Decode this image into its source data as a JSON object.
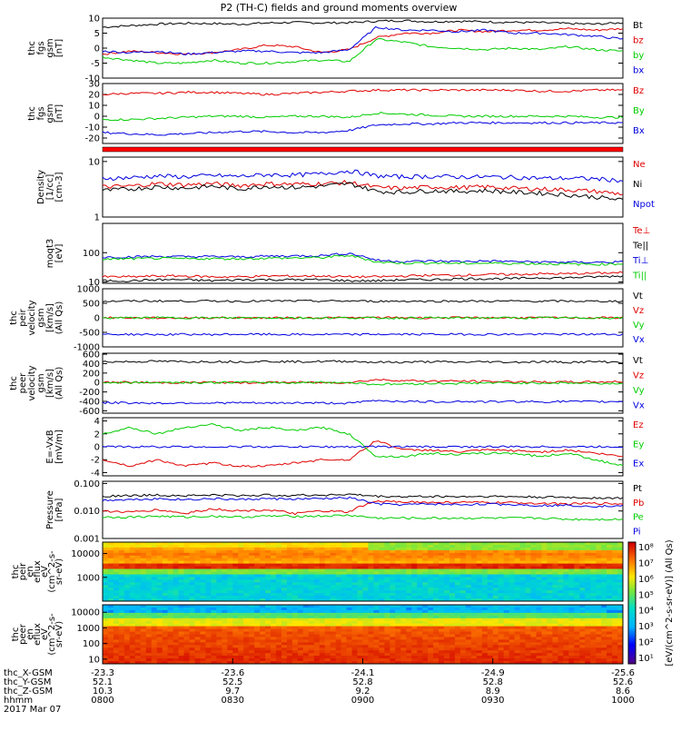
{
  "title": "P2 (TH-C) fields and ground moments overview",
  "colors": {
    "black": "#000000",
    "red": "#e00000",
    "green": "#00cc00",
    "blue": "#0000e0"
  },
  "chart_data": [
    {
      "id": "p1",
      "type": "line",
      "ylabel": [
        "thc",
        "fgs",
        "gsm",
        "[nT]"
      ],
      "ylim": [
        -10,
        10
      ],
      "yticks": [
        "10",
        "5",
        "0",
        "-5",
        "-10"
      ],
      "yvals": [
        10,
        5,
        0,
        -5,
        -10
      ],
      "log": false,
      "series": [
        {
          "name": "Bt",
          "color": "black",
          "values": [
            7,
            7.5,
            8,
            8.3,
            8.2,
            8.0,
            8.4,
            8.6,
            8.4,
            8.5,
            9.0,
            9.2,
            8.8,
            9.0,
            8.8,
            8.6,
            8.5,
            8.2,
            8.0,
            8.5
          ]
        },
        {
          "name": "bz",
          "color": "red",
          "values": [
            -2,
            -1,
            -1.5,
            -2,
            -1.5,
            -0.5,
            1,
            0.5,
            -1.5,
            -0.5,
            3.5,
            5,
            5,
            6,
            5.5,
            6,
            6,
            6.5,
            6,
            6.5
          ]
        },
        {
          "name": "by",
          "color": "green",
          "values": [
            -3,
            -4,
            -5,
            -5,
            -4,
            -5,
            -5,
            -4.5,
            -4,
            -4.5,
            3,
            2,
            0.5,
            0,
            -0.5,
            0,
            -0.5,
            0.5,
            -0.5,
            -1
          ]
        },
        {
          "name": "bx",
          "color": "blue",
          "values": [
            -1,
            -1.5,
            -1,
            -2,
            -1.5,
            -1,
            -1,
            -1.5,
            -1.5,
            -0.5,
            7,
            6,
            6,
            5.5,
            6,
            5,
            5,
            4.5,
            4,
            3
          ]
        }
      ]
    },
    {
      "id": "p2",
      "type": "line",
      "ylabel": [
        "thc",
        "fgs",
        "gsm",
        "[nT]"
      ],
      "ylim": [
        -25,
        30
      ],
      "yticks": [
        "30",
        "20",
        "10",
        "0",
        "-10",
        "-20"
      ],
      "yvals": [
        30,
        20,
        10,
        0,
        -10,
        -20
      ],
      "log": false,
      "series": [
        {
          "name": "Bz",
          "color": "red",
          "values": [
            20,
            21,
            21,
            22,
            22,
            21,
            20,
            21,
            22,
            23,
            24,
            24,
            24,
            24,
            24,
            24,
            23,
            23,
            24,
            24
          ]
        },
        {
          "name": "By",
          "color": "green",
          "values": [
            -3,
            -3,
            -2,
            -1,
            0,
            0,
            -1,
            0,
            0,
            -1,
            3,
            2,
            1,
            0,
            0,
            0,
            0,
            0,
            -1,
            -1
          ]
        },
        {
          "name": "Bx",
          "color": "blue",
          "values": [
            -15,
            -16,
            -17,
            -16,
            -15,
            -14,
            -14,
            -15,
            -15,
            -13,
            -8,
            -7,
            -7,
            -6,
            -6,
            -6,
            -6,
            -6,
            -6,
            -6
          ]
        }
      ]
    },
    {
      "id": "p3",
      "type": "line",
      "ylabel": [
        "Density",
        "[1/cc]",
        "[cm-3]"
      ],
      "ylim": [
        1,
        12
      ],
      "yticks": [
        "10",
        "1"
      ],
      "yvals": [
        10,
        1
      ],
      "log": true,
      "series": [
        {
          "name": "Ne",
          "color": "red",
          "values": [
            3.5,
            3.6,
            4.0,
            3.8,
            4.0,
            3.7,
            4.0,
            3.9,
            4.0,
            4.2,
            3.4,
            3.3,
            3.5,
            3.4,
            3.5,
            3.3,
            3.2,
            3.1,
            2.9,
            2.6
          ]
        },
        {
          "name": "Ni",
          "color": "black",
          "values": [
            3.0,
            3.2,
            3.5,
            3.3,
            3.6,
            3.2,
            3.6,
            3.4,
            3.6,
            4.0,
            2.9,
            2.8,
            3.0,
            2.9,
            3.0,
            2.8,
            2.7,
            2.5,
            2.3,
            2.0
          ]
        },
        {
          "name": "Npot",
          "color": "blue",
          "values": [
            5.0,
            5.1,
            5.5,
            5.3,
            5.6,
            5.4,
            5.8,
            5.7,
            6.0,
            6.8,
            5.5,
            5.3,
            5.4,
            5.3,
            5.3,
            5.2,
            5.0,
            5.0,
            4.9,
            4.5
          ]
        }
      ]
    },
    {
      "id": "p4",
      "type": "line",
      "ylabel": [
        "moqt3",
        "[eV]"
      ],
      "ylim": [
        9,
        1000
      ],
      "yticks": [
        "100",
        "10"
      ],
      "yvals": [
        100,
        10
      ],
      "log": true,
      "series": [
        {
          "name": "Te⊥",
          "color": "red",
          "values": [
            15,
            15,
            16,
            16,
            15,
            15,
            16,
            16,
            16,
            15,
            15,
            16,
            17,
            17,
            18,
            18,
            19,
            19,
            20,
            21
          ]
        },
        {
          "name": "Te||",
          "color": "black",
          "values": [
            11,
            11,
            12,
            12,
            11,
            12,
            12,
            12,
            12,
            11,
            11,
            12,
            12,
            13,
            13,
            13,
            14,
            14,
            15,
            16
          ]
        },
        {
          "name": "Ti⊥",
          "color": "blue",
          "values": [
            70,
            72,
            75,
            73,
            74,
            72,
            76,
            78,
            80,
            95,
            55,
            50,
            52,
            50,
            52,
            50,
            48,
            47,
            47,
            48
          ]
        },
        {
          "name": "Ti||",
          "color": "green",
          "values": [
            60,
            62,
            64,
            62,
            63,
            62,
            65,
            66,
            68,
            80,
            48,
            44,
            45,
            43,
            44,
            43,
            42,
            41,
            40,
            42
          ]
        }
      ]
    },
    {
      "id": "p5",
      "type": "line",
      "ylabel": [
        "thc",
        "peir",
        "velocity",
        "gsm",
        "[km/s]",
        "(All Qs)"
      ],
      "ylim": [
        -1000,
        1000
      ],
      "yticks": [
        "1000",
        "500",
        "0",
        "-500",
        "-1000"
      ],
      "yvals": [
        1000,
        500,
        0,
        -500,
        -1000
      ],
      "log": false,
      "series": [
        {
          "name": "Vt",
          "color": "black",
          "values": [
            570,
            575,
            580,
            575,
            580,
            570,
            575,
            580,
            575,
            580,
            570,
            575,
            570,
            575,
            570,
            575,
            570,
            575,
            570,
            575
          ]
        },
        {
          "name": "Vz",
          "color": "red",
          "values": [
            5,
            0,
            -5,
            0,
            5,
            0,
            -5,
            0,
            5,
            0,
            10,
            5,
            0,
            5,
            0,
            5,
            0,
            5,
            0,
            5
          ]
        },
        {
          "name": "Vy",
          "color": "green",
          "values": [
            -5,
            0,
            5,
            0,
            -5,
            0,
            5,
            0,
            -5,
            0,
            -10,
            -5,
            0,
            -5,
            0,
            -5,
            0,
            -5,
            0,
            -5
          ]
        },
        {
          "name": "Vx",
          "color": "blue",
          "values": [
            -565,
            -570,
            -575,
            -570,
            -575,
            -565,
            -570,
            -575,
            -570,
            -575,
            -565,
            -570,
            -565,
            -570,
            -565,
            -570,
            -565,
            -570,
            -565,
            -570
          ]
        }
      ]
    },
    {
      "id": "p6",
      "type": "line",
      "ylabel": [
        "thc",
        "peer",
        "velocity",
        "gsm",
        "[km/s]",
        "(All Qs)"
      ],
      "ylim": [
        -650,
        620
      ],
      "yticks": [
        "600",
        "400",
        "200",
        "0",
        "-200",
        "-400",
        "-600"
      ],
      "yvals": [
        600,
        400,
        200,
        0,
        -200,
        -400,
        -600
      ],
      "log": false,
      "series": [
        {
          "name": "Vt",
          "color": "black",
          "values": [
            440,
            440,
            450,
            440,
            445,
            440,
            450,
            440,
            445,
            450,
            430,
            430,
            440,
            430,
            440,
            430,
            440,
            430,
            440,
            430
          ]
        },
        {
          "name": "Vz",
          "color": "red",
          "values": [
            0,
            5,
            -5,
            0,
            5,
            -5,
            0,
            5,
            -5,
            0,
            60,
            40,
            30,
            30,
            20,
            20,
            10,
            10,
            10,
            20
          ]
        },
        {
          "name": "Vy",
          "color": "green",
          "values": [
            0,
            -5,
            5,
            0,
            -5,
            5,
            0,
            -5,
            5,
            0,
            -40,
            -30,
            -20,
            -20,
            -10,
            -10,
            -10,
            -10,
            -20,
            -20
          ]
        },
        {
          "name": "Vx",
          "color": "blue",
          "values": [
            -430,
            -430,
            -440,
            -430,
            -435,
            -430,
            -440,
            -430,
            -435,
            -440,
            -380,
            -400,
            -410,
            -400,
            -410,
            -400,
            -410,
            -400,
            -410,
            -400
          ]
        }
      ]
    },
    {
      "id": "p7",
      "type": "line",
      "ylabel": [
        "E=-VxB",
        "[mV/m]"
      ],
      "ylim": [
        -4.5,
        4.5
      ],
      "yticks": [
        "4",
        "2",
        "0",
        "-2",
        "-4"
      ],
      "yvals": [
        4,
        2,
        0,
        -2,
        -4
      ],
      "log": false,
      "series": [
        {
          "name": "Ez",
          "color": "red",
          "values": [
            -2,
            -3,
            -2,
            -3,
            -2.5,
            -3,
            -3,
            -2.5,
            -2,
            -2,
            1,
            -0.5,
            -0.5,
            -0.8,
            -0.5,
            -0.6,
            -0.8,
            -0.5,
            -1,
            -1.5
          ]
        },
        {
          "name": "Ey",
          "color": "green",
          "values": [
            2,
            3,
            2,
            3,
            3.5,
            2.5,
            3,
            2.5,
            3,
            2,
            -1.5,
            -1.5,
            -1.0,
            -1.2,
            -1.0,
            -1.0,
            -1.5,
            -1.0,
            -2,
            -3
          ]
        },
        {
          "name": "Ex",
          "color": "blue",
          "values": [
            0,
            0,
            0,
            0,
            0,
            0,
            0,
            0,
            0,
            0,
            0,
            0,
            0,
            0,
            0,
            0,
            0,
            0,
            0,
            0
          ]
        }
      ]
    },
    {
      "id": "p8",
      "type": "line",
      "ylabel": [
        "Pressure",
        "[nPa]"
      ],
      "ylim": [
        0.001,
        0.12
      ],
      "yticks": [
        "0.100",
        "0.010",
        "0.001"
      ],
      "yvals": [
        0.1,
        0.01,
        0.001
      ],
      "log": true,
      "series": [
        {
          "name": "Pt",
          "color": "black",
          "values": [
            0.035,
            0.036,
            0.038,
            0.036,
            0.038,
            0.036,
            0.038,
            0.037,
            0.038,
            0.04,
            0.034,
            0.033,
            0.034,
            0.033,
            0.034,
            0.033,
            0.032,
            0.031,
            0.03,
            0.029
          ]
        },
        {
          "name": "Pb",
          "color": "red",
          "values": [
            0.01,
            0.009,
            0.011,
            0.008,
            0.012,
            0.01,
            0.011,
            0.008,
            0.01,
            0.009,
            0.022,
            0.022,
            0.02,
            0.021,
            0.02,
            0.02,
            0.019,
            0.018,
            0.019,
            0.018
          ]
        },
        {
          "name": "Pe",
          "color": "green",
          "values": [
            0.006,
            0.006,
            0.0065,
            0.006,
            0.0065,
            0.006,
            0.0065,
            0.0065,
            0.0065,
            0.007,
            0.0055,
            0.0055,
            0.0055,
            0.0055,
            0.0055,
            0.0055,
            0.0055,
            0.005,
            0.005,
            0.005
          ]
        },
        {
          "name": "Pi",
          "color": "blue",
          "values": [
            0.025,
            0.026,
            0.028,
            0.026,
            0.028,
            0.026,
            0.028,
            0.027,
            0.028,
            0.03,
            0.018,
            0.017,
            0.018,
            0.017,
            0.018,
            0.017,
            0.016,
            0.016,
            0.015,
            0.015
          ]
        }
      ]
    }
  ],
  "spectrograms": [
    {
      "id": "s1",
      "type": "heatmap",
      "ylabel": [
        "thc",
        "peir",
        "en",
        "eflux",
        "eV",
        "(cm^2-s-",
        "sr-eV)"
      ],
      "yticks": [
        "10000",
        "1000"
      ],
      "ylim": [
        100,
        30000
      ]
    },
    {
      "id": "s2",
      "type": "heatmap",
      "ylabel": [
        "thc",
        "peer",
        "en",
        "eflux",
        "eV",
        "(cm^2-s-",
        "sr-eV)"
      ],
      "yticks": [
        "10000",
        "1000",
        "100",
        "10"
      ],
      "ylim": [
        5,
        30000
      ]
    }
  ],
  "colorbar": {
    "label": "[eV/(cm^2-s-sr-eV)] (All Qs)",
    "ticks": [
      "10⁸",
      "10⁷",
      "10⁶",
      "10⁵",
      "10⁴",
      "10³",
      "10²",
      "10¹"
    ]
  },
  "xaxis": {
    "ticks": [
      "0800",
      "0830",
      "0900",
      "0930",
      "1000"
    ],
    "rows": [
      {
        "label": "thc_X-GSM",
        "values": [
          "-23.3",
          "-23.6",
          "-24.1",
          "-24.9",
          "-25.6"
        ]
      },
      {
        "label": "thc_Y-GSM",
        "values": [
          "52.1",
          "52.5",
          "52.8",
          "52.8",
          "52.6"
        ]
      },
      {
        "label": "thc_Z-GSM",
        "values": [
          "10.3",
          "9.7",
          "9.2",
          "8.9",
          "8.6"
        ]
      },
      {
        "label": "hhmm",
        "values": [
          "0800",
          "0830",
          "0900",
          "0930",
          "1000"
        ]
      }
    ],
    "date": "2017 Mar 07"
  }
}
